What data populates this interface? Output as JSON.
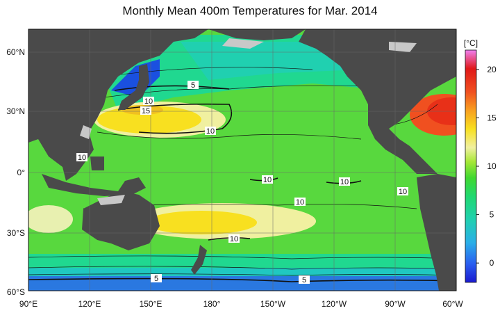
{
  "title": "Monthly Mean 400m Temperatures for Mar. 2014",
  "lat_labels": [
    "60°N",
    "30°N",
    "0°",
    "30°S",
    "60°S"
  ],
  "lon_labels": [
    "90°E",
    "120°E",
    "150°E",
    "180°",
    "150°W",
    "120°W",
    "90°W",
    "60°W"
  ],
  "colorbar": {
    "unit": "[°C]",
    "ticks": [
      "20",
      "15",
      "10",
      "5",
      "0"
    ],
    "range": [
      -2,
      22
    ],
    "colors": [
      "#1a1ad0",
      "#2a6cf0",
      "#2aaee8",
      "#20d0b0",
      "#20d870",
      "#40d830",
      "#a8e838",
      "#f0f0a0",
      "#f8e020",
      "#f8a020",
      "#f05020",
      "#e01818",
      "#f080f0"
    ]
  },
  "contour_labels": [
    "5",
    "10",
    "15",
    "10",
    "10",
    "10",
    "10",
    "10",
    "10",
    "10",
    "5",
    "5"
  ],
  "colors": {
    "land": "#4a4a4a",
    "background_ocean": "#58d83e"
  }
}
